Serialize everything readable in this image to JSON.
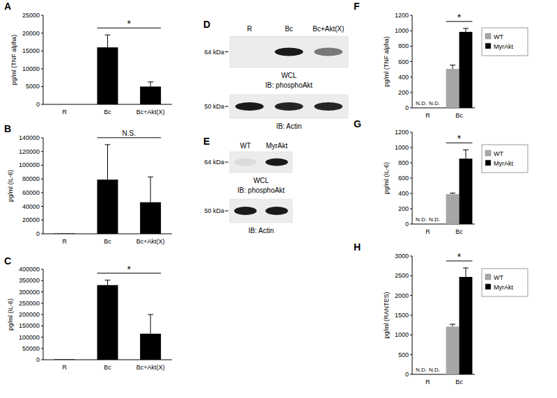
{
  "chart_data": [
    {
      "panel": "A",
      "type": "bar",
      "y_label": "pg/ml (TNF alpha)",
      "categories": [
        "R",
        "Bc",
        "Bc+Akt(X)"
      ],
      "values": [
        0,
        16000,
        5000
      ],
      "errors": [
        null,
        3500,
        1300
      ],
      "color": "#000000",
      "ylim": [
        0,
        25000
      ],
      "yticks": [
        0,
        5000,
        10000,
        15000,
        20000,
        25000
      ],
      "grid": false,
      "annotations": [
        {
          "text": "*",
          "span": [
            1,
            2
          ]
        }
      ]
    },
    {
      "panel": "B",
      "type": "bar",
      "y_label": "pg/ml (IL-6)",
      "categories": [
        "R",
        "Bc",
        "Bc+Akt(X)"
      ],
      "values": [
        500,
        79000,
        46000
      ],
      "errors": [
        null,
        51000,
        37000
      ],
      "color": "#000000",
      "ylim": [
        0,
        140000
      ],
      "yticks": [
        0,
        20000,
        40000,
        60000,
        80000,
        100000,
        120000,
        140000
      ],
      "grid": false,
      "annotations": [
        {
          "text": "N.S.",
          "span": [
            1,
            2
          ]
        }
      ]
    },
    {
      "panel": "C",
      "type": "bar",
      "y_label": "pg/ml (IL-6)",
      "categories": [
        "R",
        "Bc",
        "Bc+Akt(X)"
      ],
      "values": [
        2000,
        330000,
        115000
      ],
      "errors": [
        null,
        22000,
        85000
      ],
      "color": "#000000",
      "ylim": [
        0,
        400000
      ],
      "yticks": [
        0,
        50000,
        100000,
        150000,
        200000,
        250000,
        300000,
        350000,
        400000
      ],
      "grid": false,
      "annotations": [
        {
          "text": "*",
          "span": [
            1,
            2
          ]
        }
      ]
    },
    {
      "panel": "D",
      "type": "blot",
      "lanes": [
        "R",
        "Bc",
        "Bc+Akt(X)"
      ],
      "rows": [
        {
          "mw_label": "64 kDa",
          "captions": [
            "WCL",
            "IB: phosphoAkt"
          ],
          "bands": [
            0,
            1,
            0.55
          ]
        },
        {
          "mw_label": "50 kDa",
          "captions": [
            "IB: Actin"
          ],
          "bands": [
            1,
            0.95,
            0.95
          ]
        }
      ]
    },
    {
      "panel": "E",
      "type": "blot",
      "lanes": [
        "WT",
        "MyrAkt"
      ],
      "rows": [
        {
          "mw_label": "64 kDa",
          "captions": [
            "WCL",
            "IB: phosphoAkt"
          ],
          "bands": [
            0.08,
            1
          ]
        },
        {
          "mw_label": "50 kDa",
          "captions": [
            "IB: Actin"
          ],
          "bands": [
            1,
            1
          ]
        }
      ]
    },
    {
      "panel": "F",
      "type": "bar",
      "y_label": "pg/ml (TNF alpha)",
      "categories": [
        "R",
        "Bc"
      ],
      "series": [
        {
          "name": "WT",
          "color": "#a6a6a6",
          "values": [
            null,
            505
          ],
          "errors": [
            null,
            50
          ],
          "value_labels": [
            "N.D.",
            null
          ]
        },
        {
          "name": "MyrAkt",
          "color": "#000000",
          "values": [
            null,
            985
          ],
          "errors": [
            null,
            45
          ],
          "value_labels": [
            "N.D.",
            null
          ]
        }
      ],
      "ylim": [
        0,
        1200
      ],
      "yticks": [
        0,
        200,
        400,
        600,
        800,
        1000,
        1200
      ],
      "grid": false,
      "legend": "right",
      "annotations": [
        {
          "text": "*",
          "span": [
            1,
            1
          ]
        }
      ]
    },
    {
      "panel": "G",
      "type": "bar",
      "y_label": "pg/ml (IL-6)",
      "categories": [
        "R",
        "Bc"
      ],
      "series": [
        {
          "name": "WT",
          "color": "#a6a6a6",
          "values": [
            null,
            390
          ],
          "errors": [
            null,
            15
          ],
          "value_labels": [
            "N.D.",
            null
          ]
        },
        {
          "name": "MyrAkt",
          "color": "#000000",
          "values": [
            null,
            855
          ],
          "errors": [
            null,
            115
          ],
          "value_labels": [
            "N.D.",
            null
          ]
        }
      ],
      "ylim": [
        0,
        1200
      ],
      "yticks": [
        0,
        200,
        400,
        600,
        800,
        1000,
        1200
      ],
      "grid": false,
      "legend": "right",
      "annotations": [
        {
          "text": "*",
          "span": [
            1,
            1
          ]
        }
      ]
    },
    {
      "panel": "H",
      "type": "bar",
      "y_label": "pg/ml (RANTES)",
      "categories": [
        "R",
        "Bc"
      ],
      "series": [
        {
          "name": "WT",
          "color": "#a6a6a6",
          "values": [
            null,
            1210
          ],
          "errors": [
            null,
            60
          ],
          "value_labels": [
            "N.D.",
            null
          ]
        },
        {
          "name": "MyrAkt",
          "color": "#000000",
          "values": [
            null,
            2470
          ],
          "errors": [
            null,
            230
          ],
          "value_labels": [
            "N.D.",
            null
          ]
        }
      ],
      "ylim": [
        0,
        3000
      ],
      "yticks": [
        0,
        500,
        1000,
        1500,
        2000,
        2500,
        3000
      ],
      "grid": false,
      "legend": "right",
      "annotations": [
        {
          "text": "*",
          "span": [
            1,
            1
          ]
        }
      ]
    }
  ]
}
